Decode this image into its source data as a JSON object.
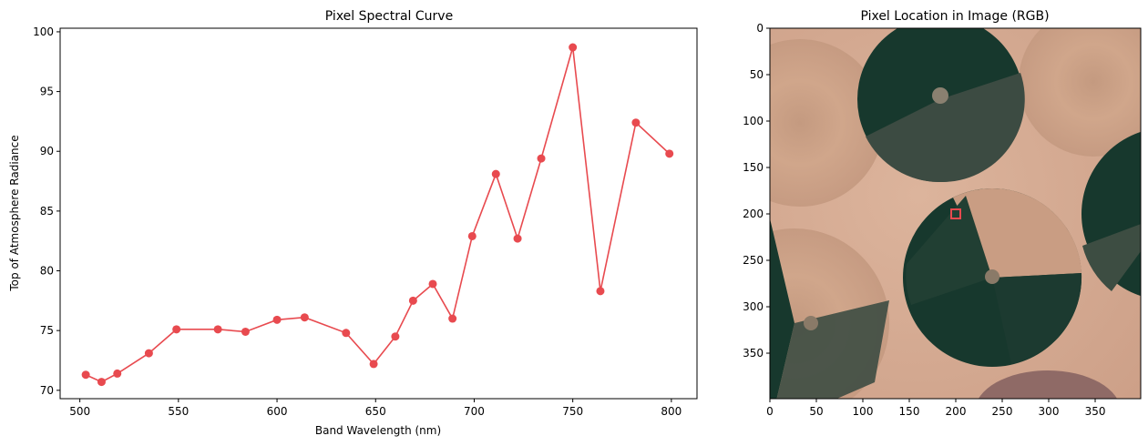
{
  "chart_data": [
    {
      "type": "line",
      "title": "Pixel Spectral Curve",
      "xlabel": "Band Wavelength (nm)",
      "ylabel": "Top of Atmosphere Radiance",
      "xlim": [
        490,
        813
      ],
      "ylim": [
        69.3,
        100.3
      ],
      "xticks": [
        500,
        550,
        600,
        650,
        700,
        750,
        800
      ],
      "yticks": [
        70,
        75,
        80,
        85,
        90,
        95,
        100
      ],
      "grid": false,
      "series": [
        {
          "color": "#e84a4f",
          "marker": "circle",
          "x": [
            503,
            511,
            519,
            535,
            549,
            570,
            584,
            600,
            614,
            635,
            649,
            660,
            669,
            679,
            689,
            699,
            711,
            722,
            734,
            750,
            764,
            782,
            799
          ],
          "y": [
            71.3,
            70.7,
            71.4,
            73.1,
            75.1,
            75.1,
            74.9,
            75.9,
            76.1,
            74.8,
            72.2,
            74.5,
            77.5,
            78.9,
            76.0,
            82.9,
            88.1,
            82.7,
            89.4,
            98.7,
            78.3,
            92.4,
            89.8
          ]
        }
      ]
    },
    {
      "type": "image",
      "title": "Pixel Location in Image (RGB)",
      "xlim": [
        0,
        399
      ],
      "ylim": [
        399,
        0
      ],
      "xticks": [
        0,
        50,
        100,
        150,
        200,
        250,
        300,
        350
      ],
      "yticks": [
        0,
        50,
        100,
        150,
        200,
        250,
        300,
        350
      ],
      "marker": {
        "x": 200,
        "y": 200,
        "color": "#e84a4f"
      },
      "scene": {
        "background": "#d8ad94",
        "field_dark": "#17382d",
        "field_light": "#c69a80",
        "field_mid": "#3d4d42"
      }
    }
  ]
}
